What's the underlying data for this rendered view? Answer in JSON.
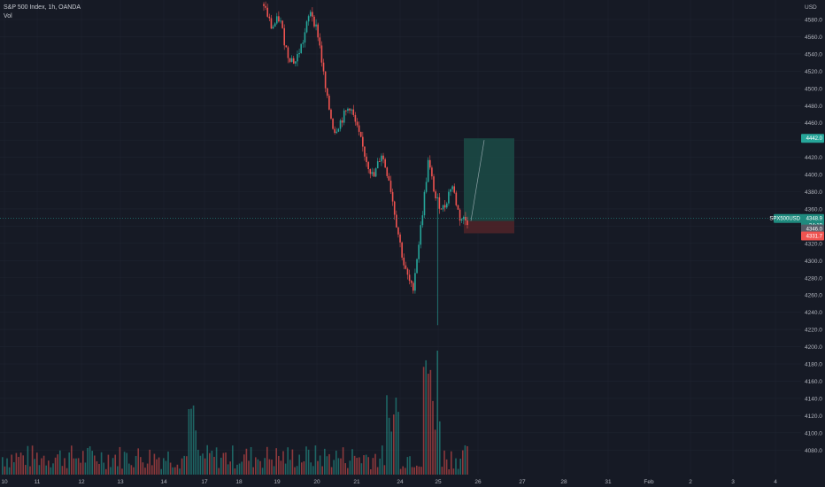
{
  "header": {
    "title": "S&P 500 Index, 1h, OANDA",
    "volume_label": "Vol"
  },
  "price_axis": {
    "currency": "USD",
    "ticks": [
      "4580.0",
      "4560.0",
      "4540.0",
      "4520.0",
      "4500.0",
      "4480.0",
      "4460.0",
      "4440.0",
      "4420.0",
      "4400.0",
      "4380.0",
      "4360.0",
      "4340.0",
      "4320.0",
      "4300.0",
      "4280.0",
      "4260.0",
      "4240.0",
      "4220.0",
      "4200.0",
      "4180.0",
      "4160.0",
      "4140.0",
      "4120.0",
      "4100.0",
      "4080.0"
    ]
  },
  "time_axis": {
    "ticks": [
      "10",
      "11",
      "12",
      "13",
      "14",
      "17",
      "18",
      "19",
      "20",
      "21",
      "24",
      "25",
      "26",
      "27",
      "28",
      "31",
      "Feb",
      "2",
      "3",
      "4"
    ]
  },
  "labels": {
    "symbol": "SPX500USD",
    "last_price": "4348.9",
    "countdown": "34:19",
    "entry": "4346.0",
    "take_profit": "4442.0",
    "stop_loss": "4331.7"
  },
  "colors": {
    "background": "#161a25",
    "up": "#26a69a",
    "down": "#ef5350",
    "grid": "#1f2430",
    "axis_text": "#b2b5be",
    "profit_zone": "#1b4c47",
    "loss_zone": "#4d2329"
  },
  "chart_data": {
    "type": "candlestick",
    "title": "S&P 500 Index, 1h, OANDA",
    "currency": "USD",
    "y_range": [
      4070,
      4600
    ],
    "x_ticks": [
      "10",
      "11",
      "12",
      "13",
      "14",
      "17",
      "18",
      "19",
      "20",
      "21",
      "24",
      "25",
      "26",
      "27",
      "28",
      "31",
      "Feb",
      "2",
      "3",
      "4"
    ],
    "series_close_path": [
      {
        "date": "19",
        "price": 4598
      },
      {
        "date": "19",
        "price": 4570
      },
      {
        "date": "19",
        "price": 4582
      },
      {
        "date": "20",
        "price": 4540
      },
      {
        "date": "20",
        "price": 4530
      },
      {
        "date": "20",
        "price": 4555
      },
      {
        "date": "21",
        "price": 4592
      },
      {
        "date": "21",
        "price": 4560
      },
      {
        "date": "21",
        "price": 4490
      },
      {
        "date": "21",
        "price": 4450
      },
      {
        "date": "21",
        "price": 4465
      },
      {
        "date": "21",
        "price": 4480
      },
      {
        "date": "24",
        "price": 4450
      },
      {
        "date": "24",
        "price": 4420
      },
      {
        "date": "24",
        "price": 4395
      },
      {
        "date": "24",
        "price": 4425
      },
      {
        "date": "24",
        "price": 4395
      },
      {
        "date": "24",
        "price": 4340
      },
      {
        "date": "25",
        "price": 4290
      },
      {
        "date": "25",
        "price": 4265
      },
      {
        "date": "25",
        "price": 4335
      },
      {
        "date": "25",
        "price": 4415
      },
      {
        "date": "25",
        "price": 4370
      },
      {
        "date": "25",
        "price": 4360
      },
      {
        "date": "25",
        "price": 4390
      },
      {
        "date": "25",
        "price": 4350
      },
      {
        "date": "25",
        "price": 4346
      }
    ],
    "extremes": {
      "low": 4225,
      "high_shown": 4598
    },
    "position": {
      "type": "long",
      "entry": 4346.0,
      "take_profit": 4442.0,
      "stop_loss": 4331.7
    },
    "last_price": 4348.9,
    "volume": {
      "shown": true,
      "spike_max_date": "25"
    }
  }
}
